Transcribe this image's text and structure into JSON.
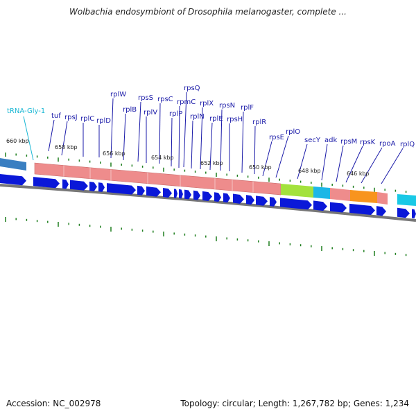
{
  "title": "Wolbachia endosymbiont of Drosophila melanogaster, complete ...",
  "footer": {
    "accession": "Accession: NC_002978",
    "summary": "Topology: circular; Length: 1,267,782 bp; Genes: 1,234"
  },
  "trna_label": "tRNA-Gly-1",
  "gene_labels": [
    "tuf",
    "rpsJ",
    "rplC",
    "rplD",
    "rplW",
    "rplB",
    "rpsS",
    "rplV",
    "rpsC",
    "rplP",
    "rpsQ",
    "rpmC",
    "rplN",
    "rplX",
    "rplE",
    "rpsN",
    "rpsH",
    "rplF",
    "rplR",
    "rpsE",
    "rplO",
    "secY",
    "adk",
    "rpsM",
    "rpsK",
    "rpoA",
    "rplQ"
  ],
  "kbp_labels": [
    "660 kbp",
    "658 kbp",
    "656 kbp",
    "654 kbp",
    "652 kbp",
    "650 kbp",
    "648 kbp",
    "646 kbp"
  ],
  "colors": {
    "ribosomal": "#ee8c8c",
    "secY": "#a3e23c",
    "adk": "#1db7e6",
    "rpoA": "#f8941e",
    "trna": "#19b7d4",
    "cds_arrow": "#0a18d8",
    "label_line": "#1a1aa8",
    "tick": "#1d7d1d",
    "backbone": "#777777"
  }
}
